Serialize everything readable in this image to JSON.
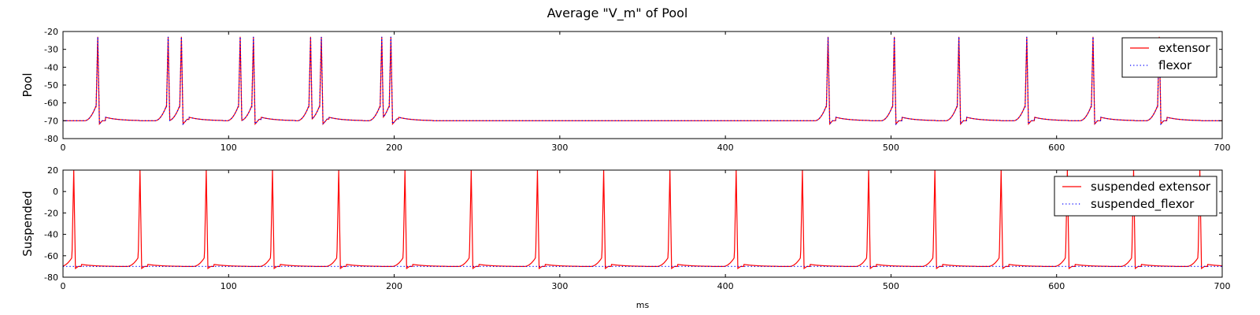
{
  "figure": {
    "title": "Average \"V_m\" of Pool"
  },
  "chart_data": [
    {
      "type": "line",
      "title": "",
      "xlabel": "",
      "ylabel": "Pool",
      "xlim": [
        0,
        700
      ],
      "ylim": [
        -80,
        -20
      ],
      "x_ticks": [
        0,
        100,
        200,
        300,
        400,
        500,
        600,
        700
      ],
      "y_ticks": [
        -80,
        -70,
        -60,
        -50,
        -40,
        -30,
        -20
      ],
      "legend_position": "top-right",
      "baseline": -70,
      "spike_peak": -23,
      "series": [
        {
          "name": "extensor",
          "color": "#ff0000",
          "style": "solid",
          "spike_times": [
            21,
            63.5,
            71.5,
            107,
            115,
            149.5,
            156,
            192.5,
            198,
            462,
            502,
            541,
            582,
            622,
            662
          ]
        },
        {
          "name": "flexor",
          "color": "#0000ff",
          "style": "dotted",
          "spike_times": [
            21,
            63.5,
            71.5,
            107,
            115,
            149.5,
            156,
            192.5,
            198,
            462,
            502,
            541,
            582,
            622,
            662
          ]
        }
      ]
    },
    {
      "type": "line",
      "title": "",
      "xlabel": "ms",
      "ylabel": "Suspended",
      "xlim": [
        0,
        700
      ],
      "ylim": [
        -80,
        20
      ],
      "x_ticks": [
        0,
        100,
        200,
        300,
        400,
        500,
        600,
        700
      ],
      "y_ticks": [
        -80,
        -60,
        -40,
        -20,
        0,
        20
      ],
      "legend_position": "top-right",
      "baseline": -70,
      "spike_peak": 20,
      "series": [
        {
          "name": "suspended extensor",
          "color": "#ff0000",
          "style": "solid",
          "spike_times": [
            6.5,
            46.5,
            86.5,
            126.5,
            166.5,
            206.5,
            246.5,
            286.5,
            326.5,
            366.5,
            406.5,
            446.5,
            486.5,
            526.5,
            566.5,
            606.5,
            646.5,
            686.5
          ]
        },
        {
          "name": "suspended_flexor",
          "color": "#0000ff",
          "style": "dotted",
          "constant": -70
        }
      ]
    }
  ]
}
